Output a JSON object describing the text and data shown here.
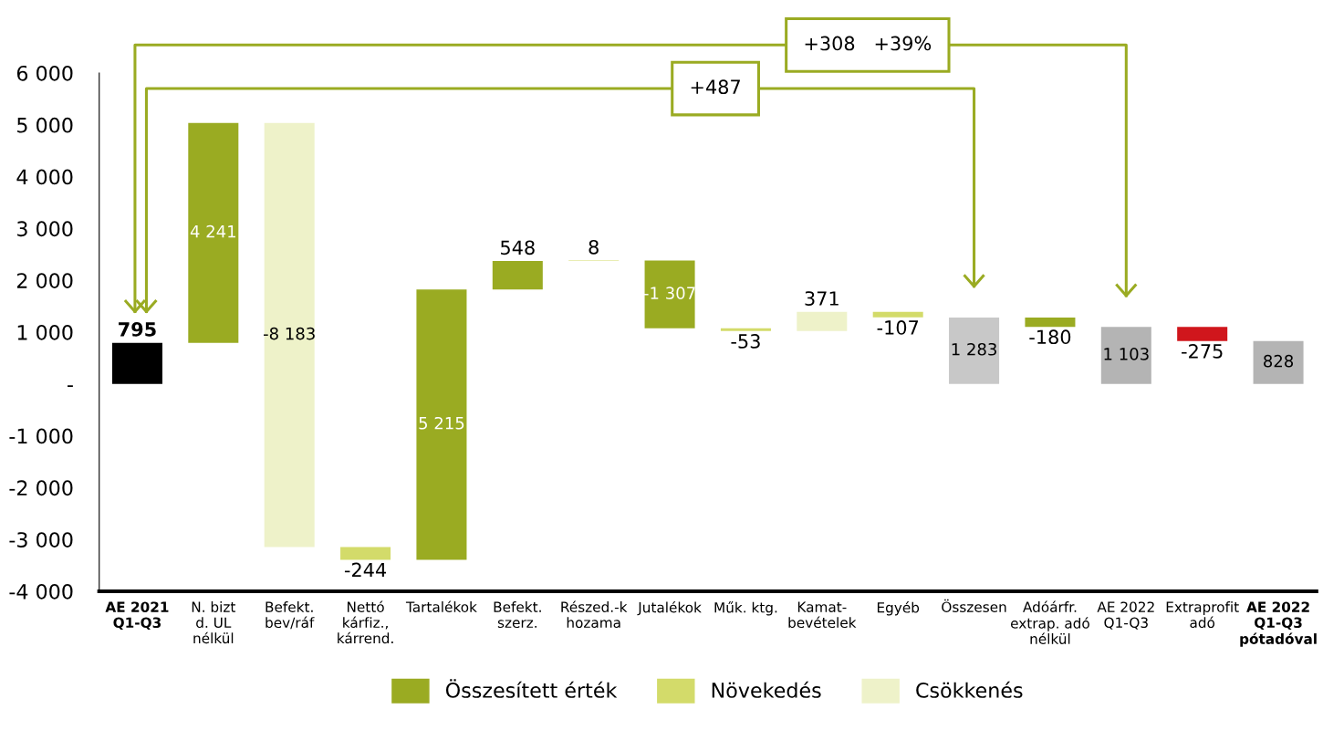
{
  "chart_data": {
    "type": "bar",
    "categories": [
      "AE 2021\nQ1-Q3",
      "N. bizt\nd. UL\nnélkül",
      "Befekt.\nbev/ráf",
      "Nettó\nkárfiz.,\nkárrend.",
      "Tartalékok",
      "Befekt.\nszerz.",
      "Részed.-k\nhozama",
      "Jutalékok",
      "Műk. ktg.",
      "Kamat-\nbevételek",
      "Egyéb",
      "Összesen",
      "Adóárfr.\nextrap. adó\nnélkül",
      "AE 2022\nQ1-Q3",
      "Extraprofit\nadó",
      "AE 2022\nQ1-Q3\npótadóval"
    ],
    "series": [
      {
        "name": "Összesített érték",
        "color": "#9aab22",
        "values": [
          null,
          4241,
          null,
          null,
          5215,
          548,
          null,
          -1307,
          null,
          null,
          null,
          null,
          -180,
          null,
          null,
          null
        ],
        "base": [
          null,
          795,
          null,
          null,
          -3391,
          1824,
          null,
          2380,
          null,
          null,
          null,
          null,
          1283,
          null,
          null,
          null
        ],
        "value_labels": [
          null,
          "4 241",
          null,
          null,
          "5 215",
          "548",
          null,
          "-1 307",
          null,
          null,
          null,
          null,
          "-180",
          null,
          null,
          null
        ]
      },
      {
        "name": "Növekedés",
        "color": "#d3db6a",
        "values": [
          null,
          null,
          null,
          -244,
          null,
          null,
          8,
          null,
          -53,
          null,
          -107,
          null,
          null,
          null,
          null,
          null
        ],
        "base": [
          null,
          null,
          null,
          -3147,
          null,
          null,
          2372,
          null,
          1073,
          null,
          1391,
          null,
          null,
          null,
          null,
          null
        ],
        "value_labels": [
          null,
          null,
          null,
          "-244",
          null,
          null,
          "8",
          null,
          "-53",
          null,
          "-107",
          null,
          null,
          null,
          null,
          null
        ]
      },
      {
        "name": "Csökkenés",
        "color": "#eef2c9",
        "values": [
          null,
          null,
          -8183,
          null,
          null,
          null,
          null,
          null,
          null,
          371,
          null,
          null,
          null,
          null,
          null,
          null
        ],
        "base": [
          null,
          null,
          5036,
          null,
          null,
          null,
          null,
          null,
          null,
          1020,
          null,
          null,
          null,
          null,
          null,
          null
        ],
        "value_labels": [
          null,
          null,
          "-8 183",
          null,
          null,
          null,
          null,
          null,
          null,
          "371",
          null,
          null,
          null,
          null,
          null,
          null
        ]
      },
      {
        "color": "#000000",
        "values": [
          795,
          null,
          null,
          null,
          null,
          null,
          null,
          null,
          null,
          null,
          null,
          null,
          null,
          null,
          null,
          null
        ],
        "base": [
          0,
          null,
          null,
          null,
          null,
          null,
          null,
          null,
          null,
          null,
          null,
          null,
          null,
          null,
          null,
          null
        ],
        "value_labels": [
          "795",
          null,
          null,
          null,
          null,
          null,
          null,
          null,
          null,
          null,
          null,
          null,
          null,
          null,
          null,
          null
        ]
      },
      {
        "color": "#c8c8c8",
        "values": [
          null,
          null,
          null,
          null,
          null,
          null,
          null,
          null,
          null,
          null,
          null,
          1283,
          null,
          null,
          null,
          null
        ],
        "base": [
          null,
          null,
          null,
          null,
          null,
          null,
          null,
          null,
          null,
          null,
          null,
          0,
          null,
          null,
          null,
          null
        ],
        "value_labels": [
          null,
          null,
          null,
          null,
          null,
          null,
          null,
          null,
          null,
          null,
          null,
          "1 283",
          null,
          null,
          null,
          null
        ]
      },
      {
        "color": "#b4b4b4",
        "values": [
          null,
          null,
          null,
          null,
          null,
          null,
          null,
          null,
          null,
          null,
          null,
          null,
          null,
          1103,
          null,
          828
        ],
        "base": [
          null,
          null,
          null,
          null,
          null,
          null,
          null,
          null,
          null,
          null,
          null,
          null,
          null,
          0,
          null,
          0
        ],
        "value_labels": [
          null,
          null,
          null,
          null,
          null,
          null,
          null,
          null,
          null,
          null,
          null,
          null,
          null,
          "1 103",
          null,
          "828"
        ]
      },
      {
        "color": "#d0161c",
        "values": [
          null,
          null,
          null,
          null,
          null,
          null,
          null,
          null,
          null,
          null,
          null,
          null,
          null,
          null,
          -275,
          null
        ],
        "base": [
          null,
          null,
          null,
          null,
          null,
          null,
          null,
          null,
          null,
          null,
          null,
          null,
          null,
          null,
          1103,
          null
        ],
        "value_labels": [
          null,
          null,
          null,
          null,
          null,
          null,
          null,
          null,
          null,
          null,
          null,
          null,
          null,
          null,
          "-275",
          null
        ]
      }
    ],
    "ylim": [
      -4000,
      6000
    ],
    "yticks": [
      {
        "value": -4000,
        "label": "-4 000"
      },
      {
        "value": -3000,
        "label": "-3 000"
      },
      {
        "value": -2000,
        "label": "-2 000"
      },
      {
        "value": -1000,
        "label": "-1 000"
      },
      {
        "value": 0,
        "label": "-"
      },
      {
        "value": 1000,
        "label": "1 000"
      },
      {
        "value": 2000,
        "label": "2 000"
      },
      {
        "value": 3000,
        "label": "3 000"
      },
      {
        "value": 4000,
        "label": "4 000"
      },
      {
        "value": 5000,
        "label": "5 000"
      },
      {
        "value": 6000,
        "label": "6 000"
      }
    ],
    "annotations": [
      "+487",
      "+308   +39%"
    ],
    "legend": "bottom",
    "grid": false
  }
}
